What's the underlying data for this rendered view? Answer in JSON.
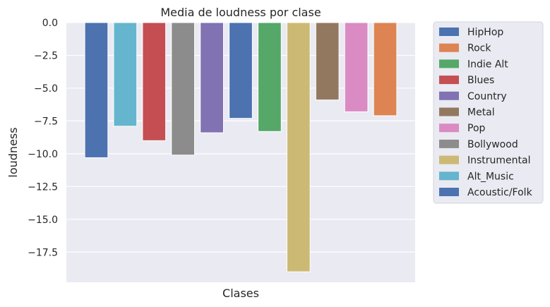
{
  "chart_data": {
    "type": "bar",
    "title": "Media de loudness por clase",
    "xlabel": "Clases",
    "ylabel": "loudness",
    "ylim": [
      -19.8,
      0
    ],
    "yticks": [
      0,
      -2.5,
      -5,
      -7.5,
      -10,
      -12.5,
      -15,
      -17.5
    ],
    "ytick_labels": [
      "0.0",
      "−2.5",
      "−5.0",
      "−7.5",
      "−10.0",
      "−12.5",
      "−15.0",
      "−17.5"
    ],
    "grid": true,
    "legend_position": "outside-right",
    "categories": [
      "Acoustic/Folk",
      "Alt_Music",
      "Blues",
      "Bollywood",
      "Country",
      "HipHop",
      "Indie Alt",
      "Instrumental",
      "Metal",
      "Pop",
      "Rock"
    ],
    "series": [
      {
        "name": "HipHop",
        "category": "HipHop",
        "value": -7.3,
        "color": "#4c72b0"
      },
      {
        "name": "Rock",
        "category": "Rock",
        "value": -7.1,
        "color": "#dd8452"
      },
      {
        "name": "Indie Alt",
        "category": "Indie Alt",
        "value": -8.3,
        "color": "#55a868"
      },
      {
        "name": "Blues",
        "category": "Blues",
        "value": -9.0,
        "color": "#c44e52"
      },
      {
        "name": "Country",
        "category": "Country",
        "value": -8.4,
        "color": "#8172b3"
      },
      {
        "name": "Metal",
        "category": "Metal",
        "value": -5.9,
        "color": "#937860"
      },
      {
        "name": "Pop",
        "category": "Pop",
        "value": -6.8,
        "color": "#da8bc3"
      },
      {
        "name": "Bollywood",
        "category": "Bollywood",
        "value": -10.1,
        "color": "#8c8c8c"
      },
      {
        "name": "Instrumental",
        "category": "Instrumental",
        "value": -19.0,
        "color": "#ccb974"
      },
      {
        "name": "Alt_Music",
        "category": "Alt_Music",
        "value": -7.9,
        "color": "#64b5cd"
      },
      {
        "name": "Acoustic/Folk",
        "category": "Acoustic/Folk",
        "value": -10.3,
        "color": "#4c72b0"
      }
    ],
    "bar_order": [
      "Acoustic/Folk",
      "Alt_Music",
      "Blues",
      "Bollywood",
      "Country",
      "HipHop",
      "Indie Alt",
      "Instrumental",
      "Metal",
      "Pop",
      "Rock"
    ],
    "legend_order": [
      "HipHop",
      "Rock",
      "Indie Alt",
      "Blues",
      "Country",
      "Metal",
      "Pop",
      "Bollywood",
      "Instrumental",
      "Alt_Music",
      "Acoustic/Folk"
    ],
    "colors": {
      "plot_background": "#eaeaf2",
      "grid": "#ffffff",
      "text": "#262626"
    }
  }
}
